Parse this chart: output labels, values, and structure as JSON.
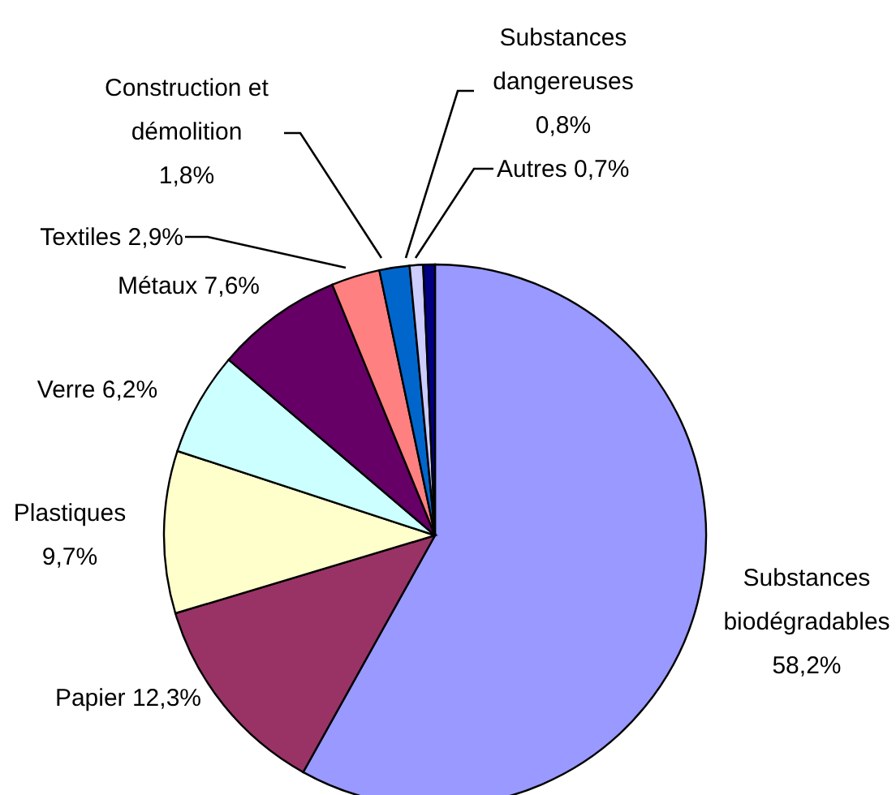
{
  "chart_data": {
    "type": "pie",
    "categories": [
      "Substances biodégradables",
      "Papier",
      "Plastiques",
      "Verre",
      "Métaux",
      "Textiles",
      "Construction et démolition",
      "Substances dangereuses",
      "Autres"
    ],
    "values": [
      58.2,
      12.3,
      9.7,
      6.2,
      7.6,
      2.9,
      1.8,
      0.8,
      0.7
    ],
    "value_labels": [
      "58,2%",
      "12,3%",
      "9,7%",
      "6,2%",
      "7,6%",
      "2,9%",
      "1,8%",
      "0,8%",
      "0,7%"
    ],
    "colors": [
      "#9999ff",
      "#993366",
      "#ffffcc",
      "#ccffff",
      "#660066",
      "#ff8080",
      "#0066cc",
      "#ccccff",
      "#000080"
    ],
    "legend": false
  }
}
